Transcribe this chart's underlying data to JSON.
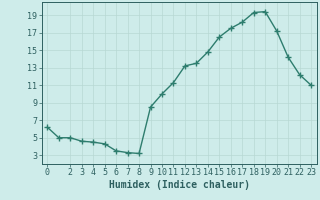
{
  "xlabel": "Humidex (Indice chaleur)",
  "ylabel": "",
  "x_values": [
    0,
    1,
    2,
    3,
    4,
    5,
    6,
    7,
    8,
    9,
    10,
    11,
    12,
    13,
    14,
    15,
    16,
    17,
    18,
    19,
    20,
    21,
    22,
    23
  ],
  "y_values": [
    6.2,
    5.0,
    5.0,
    4.6,
    4.5,
    4.3,
    3.5,
    3.3,
    3.2,
    8.5,
    10.0,
    11.3,
    13.2,
    13.5,
    14.8,
    16.5,
    17.5,
    18.2,
    19.3,
    19.4,
    17.2,
    14.2,
    12.2,
    11.0
  ],
  "line_color": "#2e7d6e",
  "marker": "+",
  "marker_size": 4,
  "bg_color": "#ceecea",
  "grid_color": "#b8d8d4",
  "axis_color": "#2e6060",
  "tick_color": "#2e6060",
  "ylim": [
    2,
    20.5
  ],
  "xlim": [
    -0.5,
    23.5
  ],
  "yticks": [
    3,
    5,
    7,
    9,
    11,
    13,
    15,
    17,
    19
  ],
  "xticks": [
    0,
    2,
    3,
    4,
    5,
    6,
    7,
    8,
    9,
    10,
    11,
    12,
    13,
    14,
    15,
    16,
    17,
    18,
    19,
    20,
    21,
    22,
    23
  ],
  "xlabel_fontsize": 7,
  "tick_fontsize": 6,
  "linewidth": 1.0
}
